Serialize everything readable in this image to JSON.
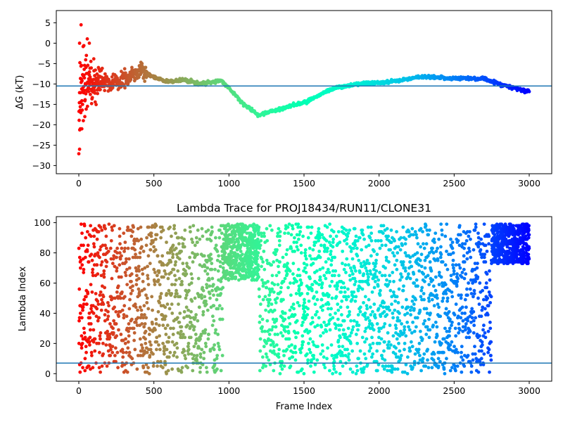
{
  "chart_data": [
    {
      "type": "scatter",
      "title": "",
      "xlabel": "",
      "ylabel": "ΔG (kT)",
      "xlim": [
        -150,
        3150
      ],
      "ylim": [
        -32,
        8
      ],
      "xticks": [
        0,
        500,
        1000,
        1500,
        2000,
        2500,
        3000
      ],
      "yticks": [
        5,
        0,
        -5,
        -10,
        -15,
        -20,
        -25,
        -30
      ],
      "colormap": "rainbow",
      "color_by": "frame index (red at 0 → violet at 3000)",
      "hline": {
        "y": -10.5,
        "color": "#1f77b4"
      },
      "grid": false,
      "trace_description": "Running free-energy estimate; widely scattered values near frame 0 converging to a continuous curve",
      "anchor_points": [
        {
          "x": 0,
          "y": -10
        },
        {
          "x": 50,
          "y": -9
        },
        {
          "x": 100,
          "y": -10.5
        },
        {
          "x": 150,
          "y": -9.5
        },
        {
          "x": 200,
          "y": -10
        },
        {
          "x": 300,
          "y": -9
        },
        {
          "x": 420,
          "y": -6.5
        },
        {
          "x": 500,
          "y": -8.5
        },
        {
          "x": 600,
          "y": -9.5
        },
        {
          "x": 700,
          "y": -9
        },
        {
          "x": 800,
          "y": -10
        },
        {
          "x": 900,
          "y": -9.5
        },
        {
          "x": 950,
          "y": -9.2
        },
        {
          "x": 1000,
          "y": -11
        },
        {
          "x": 1100,
          "y": -15
        },
        {
          "x": 1200,
          "y": -17.7
        },
        {
          "x": 1300,
          "y": -16.5
        },
        {
          "x": 1500,
          "y": -14.5
        },
        {
          "x": 1700,
          "y": -11
        },
        {
          "x": 1900,
          "y": -9.8
        },
        {
          "x": 2000,
          "y": -9.7
        },
        {
          "x": 2100,
          "y": -9.3
        },
        {
          "x": 2300,
          "y": -8.2
        },
        {
          "x": 2500,
          "y": -8.6
        },
        {
          "x": 2700,
          "y": -8.7
        },
        {
          "x": 2800,
          "y": -10
        },
        {
          "x": 3000,
          "y": -12
        }
      ],
      "early_outliers": [
        {
          "x": 5,
          "y": -26
        },
        {
          "x": 10,
          "y": -21
        },
        {
          "x": 20,
          "y": -21
        },
        {
          "x": 15,
          "y": 4.5
        },
        {
          "x": 5,
          "y": 0
        },
        {
          "x": 25,
          "y": -15
        },
        {
          "x": 40,
          "y": -18
        },
        {
          "x": 30,
          "y": -19
        },
        {
          "x": 70,
          "y": 0
        },
        {
          "x": 10,
          "y": -14.5
        }
      ]
    },
    {
      "type": "scatter",
      "title": "Lambda Trace for PROJ18434/RUN11/CLONE31",
      "xlabel": "Frame Index",
      "ylabel": "Lambda Index",
      "xlim": [
        -150,
        3150
      ],
      "ylim": [
        -5,
        104
      ],
      "xticks": [
        0,
        500,
        1000,
        1500,
        2000,
        2500,
        3000
      ],
      "yticks": [
        0,
        20,
        40,
        60,
        80,
        100
      ],
      "colormap": "rainbow",
      "color_by": "frame index (red at 0 → violet at 3000)",
      "hline": {
        "y": 7,
        "color": "#1f77b4"
      },
      "grid": false,
      "segments": [
        {
          "x_range": [
            0,
            960
          ],
          "y_range": [
            0,
            99
          ]
        },
        {
          "x_range": [
            960,
            1200
          ],
          "y_range": [
            62,
            99
          ]
        },
        {
          "x_range": [
            1200,
            2750
          ],
          "y_range": [
            0,
            99
          ]
        },
        {
          "x_range": [
            2750,
            3000
          ],
          "y_range": [
            73,
            99
          ]
        }
      ]
    }
  ]
}
